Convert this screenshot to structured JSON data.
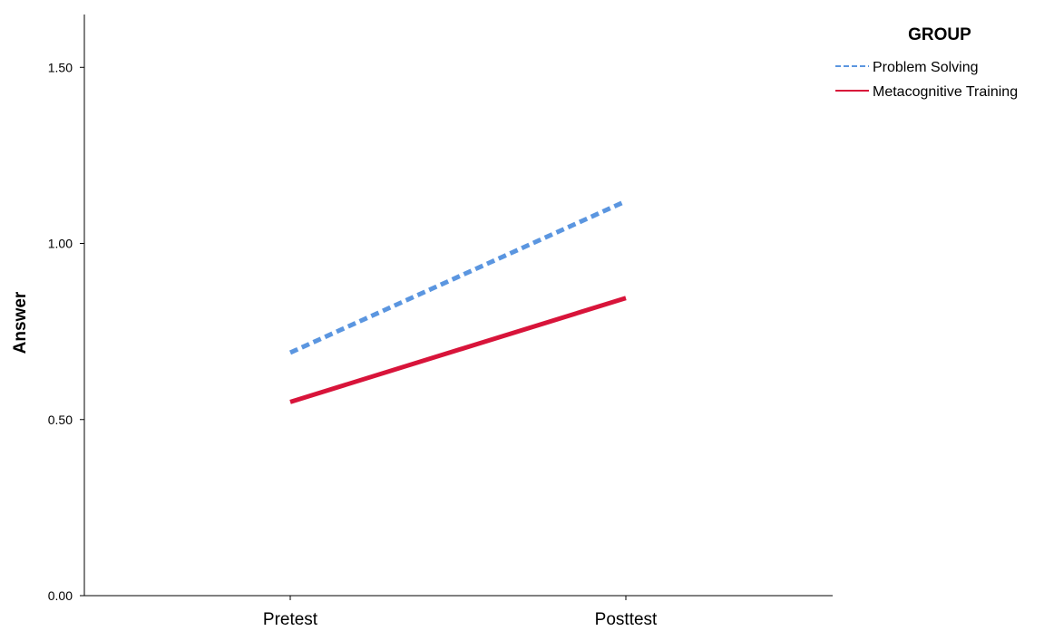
{
  "chart_data": {
    "type": "line",
    "title": "",
    "xlabel": "",
    "ylabel": "Answer",
    "categories": [
      "Pretest",
      "Posttest"
    ],
    "ylim": [
      0.0,
      1.65
    ],
    "yticks": [
      0.0,
      0.5,
      1.0,
      1.5
    ],
    "ytick_labels": [
      "0.00",
      "0.50",
      "1.00",
      "1.50"
    ],
    "grid": false,
    "legend": {
      "title": "GROUP",
      "position": "top-right"
    },
    "series": [
      {
        "name": "Problem Solving",
        "values": [
          0.69,
          1.12
        ],
        "color": "#5b96e0",
        "style": "dashed"
      },
      {
        "name": "Metacognitive Training",
        "values": [
          0.55,
          0.845
        ],
        "color": "#d8143a",
        "style": "solid"
      }
    ]
  }
}
